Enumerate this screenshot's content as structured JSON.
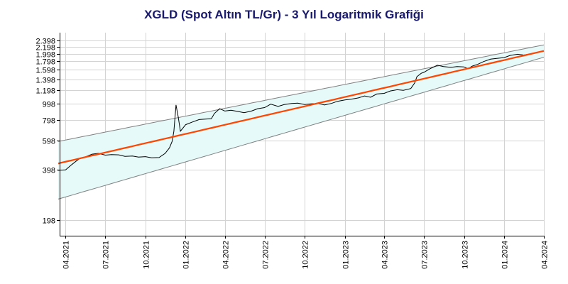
{
  "chart_data": {
    "type": "line",
    "title": "XGLD (Spot Altın TL/Gr) - 3 Yıl Logaritmik Grafiği",
    "y_scale": "log",
    "ylim": [
      0,
      2.398
    ],
    "y_ticks": [
      "2.398",
      "2.198",
      "1.998",
      "1.798",
      "1.598",
      "1.398",
      "1.198",
      "998",
      "798",
      "598",
      "398",
      "198"
    ],
    "y_tick_values": [
      2398,
      2198,
      1998,
      1798,
      1598,
      1398,
      1198,
      998,
      798,
      598,
      398,
      198
    ],
    "x_ticks": [
      "04.2021",
      "07.2021",
      "10.2021",
      "01.2022",
      "04.2022",
      "07.2022",
      "10.2022",
      "01.2023",
      "04.2023",
      "07.2023",
      "10.2023",
      "01.2024",
      "04.2024"
    ],
    "x_tick_dates": [
      "2021-04-01",
      "2021-07-01",
      "2021-10-01",
      "2022-01-01",
      "2022-04-01",
      "2022-07-01",
      "2022-10-01",
      "2023-01-01",
      "2023-04-01",
      "2023-07-01",
      "2023-10-01",
      "2024-01-01",
      "2024-04-01"
    ],
    "grid": true,
    "colors": {
      "price": "#000000",
      "trend": "#ff4500",
      "band": "#808080",
      "band_fill": "#e6fafa",
      "grid": "#d3d3d3",
      "title": "#191970"
    },
    "series": [
      {
        "role": "price",
        "x": [
          "2021-03-15",
          "2021-04-01",
          "2021-04-15",
          "2021-05-01",
          "2021-05-15",
          "2021-06-01",
          "2021-06-15",
          "2021-07-01",
          "2021-07-15",
          "2021-08-01",
          "2021-08-15",
          "2021-09-01",
          "2021-09-15",
          "2021-10-01",
          "2021-10-15",
          "2021-11-01",
          "2021-11-15",
          "2021-11-25",
          "2021-12-01",
          "2021-12-05",
          "2021-12-10",
          "2021-12-15",
          "2021-12-20",
          "2022-01-01",
          "2022-01-15",
          "2022-02-01",
          "2022-02-15",
          "2022-03-01",
          "2022-03-08",
          "2022-03-20",
          "2022-04-01",
          "2022-04-15",
          "2022-05-01",
          "2022-05-15",
          "2022-06-01",
          "2022-06-15",
          "2022-07-01",
          "2022-07-15",
          "2022-08-01",
          "2022-08-15",
          "2022-09-01",
          "2022-09-15",
          "2022-10-01",
          "2022-10-15",
          "2022-11-01",
          "2022-11-15",
          "2022-12-01",
          "2022-12-15",
          "2023-01-01",
          "2023-01-15",
          "2023-02-01",
          "2023-02-15",
          "2023-03-01",
          "2023-03-15",
          "2023-04-01",
          "2023-04-15",
          "2023-05-01",
          "2023-05-15",
          "2023-06-01",
          "2023-06-10",
          "2023-06-15",
          "2023-06-25",
          "2023-07-01",
          "2023-07-15",
          "2023-08-01",
          "2023-08-15",
          "2023-09-01",
          "2023-09-15",
          "2023-10-01",
          "2023-10-10",
          "2023-10-20",
          "2023-11-01",
          "2023-11-15",
          "2023-12-01",
          "2023-12-15",
          "2024-01-01",
          "2024-01-15",
          "2024-02-01",
          "2024-02-15",
          "2024-03-01"
        ],
        "y": [
          395,
          398,
          428,
          462,
          475,
          495,
          500,
          488,
          492,
          490,
          480,
          482,
          475,
          478,
          470,
          472,
          500,
          540,
          590,
          680,
          980,
          830,
          680,
          745,
          770,
          800,
          805,
          810,
          870,
          930,
          900,
          910,
          895,
          880,
          900,
          930,
          945,
          990,
          960,
          985,
          1000,
          1005,
          985,
          995,
          1000,
          980,
          1000,
          1030,
          1050,
          1060,
          1080,
          1110,
          1090,
          1140,
          1150,
          1190,
          1210,
          1200,
          1230,
          1330,
          1450,
          1520,
          1540,
          1620,
          1700,
          1670,
          1650,
          1670,
          1660,
          1620,
          1680,
          1720,
          1790,
          1850,
          1870,
          1890,
          1950,
          1980,
          1960,
          1990
        ]
      },
      {
        "role": "trend",
        "x": [
          "2021-03-15",
          "2024-04-01"
        ],
        "y": [
          435,
          2075
        ]
      },
      {
        "role": "upper-band",
        "x": [
          "2021-03-15",
          "2024-04-01"
        ],
        "y": [
          590,
          2255
        ]
      },
      {
        "role": "lower-band",
        "x": [
          "2021-03-15",
          "2024-04-01"
        ],
        "y": [
          265,
          1900
        ]
      }
    ]
  }
}
